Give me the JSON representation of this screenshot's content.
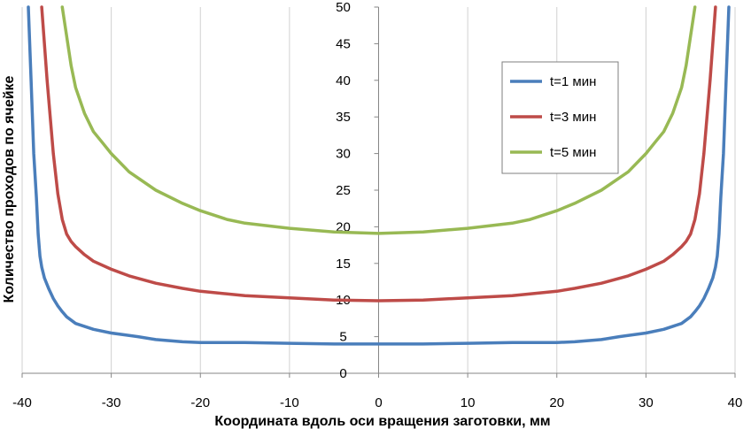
{
  "chart_data": {
    "type": "line",
    "title": "",
    "xlabel": "Координата вдоль оси вращения заготовки, мм",
    "ylabel": "Количество проходов по ячейке",
    "xlim": [
      -40,
      40
    ],
    "ylim": [
      0,
      50
    ],
    "x_ticks": [
      "-40",
      "-30",
      "-20",
      "-10",
      "0",
      "10",
      "20",
      "30",
      "40"
    ],
    "y_ticks": [
      "0",
      "5",
      "10",
      "15",
      "20",
      "25",
      "30",
      "35",
      "40",
      "45",
      "50"
    ],
    "grid": "vertical",
    "legend_position": "top-right",
    "series": [
      {
        "name": "t=1 мин",
        "color": "#4a7ebb",
        "x": [
          -39.3,
          -39.0,
          -38.7,
          -38.4,
          -38.2,
          -38.0,
          -37.8,
          -37.5,
          -37.0,
          -36.5,
          -36.0,
          -35.5,
          -35.0,
          -34.0,
          -32.0,
          -30.0,
          -27.0,
          -25.0,
          -22.0,
          -20.0,
          -15.0,
          -10.0,
          -5.0,
          0.0,
          5.0,
          10.0,
          15.0,
          20.0,
          22.0,
          25.0,
          27.0,
          30.0,
          32.0,
          34.0,
          35.0,
          35.5,
          36.0,
          36.5,
          37.0,
          37.5,
          37.8,
          38.0,
          38.2,
          38.4,
          38.7,
          39.0,
          39.3
        ],
        "y": [
          50,
          40,
          30,
          24,
          19,
          16,
          14.5,
          13,
          11.5,
          10.2,
          9.2,
          8.4,
          7.7,
          6.8,
          6.0,
          5.5,
          5.0,
          4.6,
          4.3,
          4.2,
          4.2,
          4.1,
          4.0,
          4.0,
          4.0,
          4.1,
          4.2,
          4.2,
          4.3,
          4.6,
          5.0,
          5.5,
          6.0,
          6.8,
          7.7,
          8.4,
          9.2,
          10.2,
          11.5,
          13,
          14.5,
          16,
          19,
          24,
          30,
          40,
          50
        ]
      },
      {
        "name": "t=3 мин",
        "color": "#be4b48",
        "x": [
          -37.8,
          -37.2,
          -36.5,
          -36.0,
          -35.5,
          -35.0,
          -34.5,
          -34.0,
          -33.0,
          -32.0,
          -30.0,
          -28.0,
          -25.0,
          -22.0,
          -20.0,
          -15.0,
          -10.0,
          -5.0,
          0.0,
          5.0,
          10.0,
          15.0,
          20.0,
          22.0,
          25.0,
          28.0,
          30.0,
          32.0,
          33.0,
          34.0,
          34.5,
          35.0,
          35.5,
          36.0,
          36.5,
          37.2,
          37.8
        ],
        "y": [
          50,
          40,
          30,
          24.5,
          21,
          19,
          18,
          17.3,
          16.2,
          15.3,
          14.2,
          13.3,
          12.3,
          11.6,
          11.2,
          10.6,
          10.3,
          10.0,
          9.9,
          10.0,
          10.3,
          10.6,
          11.2,
          11.6,
          12.3,
          13.3,
          14.2,
          15.3,
          16.2,
          17.3,
          18,
          19,
          21,
          24.5,
          30,
          40,
          50
        ]
      },
      {
        "name": "t=5 мин",
        "color": "#98b954",
        "x": [
          -35.5,
          -35.0,
          -34.5,
          -34.0,
          -33.0,
          -32.0,
          -31.0,
          -30.0,
          -28.0,
          -25.0,
          -22.0,
          -20.0,
          -17.0,
          -15.0,
          -10.0,
          -5.0,
          0.0,
          5.0,
          10.0,
          15.0,
          17.0,
          20.0,
          22.0,
          25.0,
          28.0,
          30.0,
          31.0,
          32.0,
          33.0,
          34.0,
          34.5,
          35.0,
          35.5
        ],
        "y": [
          50,
          46,
          42,
          39,
          35.5,
          33,
          31.5,
          30,
          27.5,
          25.0,
          23.2,
          22.2,
          21.0,
          20.5,
          19.8,
          19.3,
          19.1,
          19.3,
          19.8,
          20.5,
          21.0,
          22.2,
          23.2,
          25.0,
          27.5,
          30,
          31.5,
          33,
          35.5,
          39,
          42,
          46,
          50
        ]
      }
    ]
  }
}
